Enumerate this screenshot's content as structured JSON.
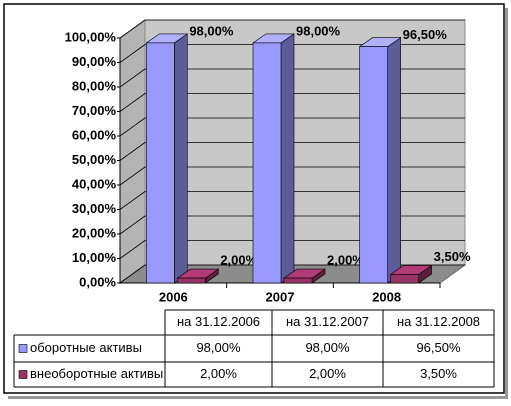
{
  "chart_data": {
    "type": "bar3d",
    "categories": [
      "2006",
      "2007",
      "2008"
    ],
    "table_headers": [
      "на 31.12.2006",
      "на 31.12.2007",
      "на 31.12.2008"
    ],
    "series": [
      {
        "name": "оборотные активы",
        "color": "#9999ff",
        "values": [
          98,
          98,
          96.5
        ],
        "value_labels": [
          "98,00%",
          "98,00%",
          "96,50%"
        ]
      },
      {
        "name": "внеоборотные активы",
        "color": "#993366",
        "values": [
          2,
          2,
          3.5
        ],
        "value_labels": [
          "2,00%",
          "2,00%",
          "3,50%"
        ]
      }
    ],
    "ylim": [
      0,
      100
    ],
    "yticks": [
      {
        "value": 0,
        "label": "0,00%"
      },
      {
        "value": 10,
        "label": "10,00%"
      },
      {
        "value": 20,
        "label": "20,00%"
      },
      {
        "value": 30,
        "label": "30,00%"
      },
      {
        "value": 40,
        "label": "40,00%"
      },
      {
        "value": 50,
        "label": "50,00%"
      },
      {
        "value": 60,
        "label": "60,00%"
      },
      {
        "value": 70,
        "label": "70,00%"
      },
      {
        "value": 80,
        "label": "80,00%"
      },
      {
        "value": 90,
        "label": "90,00%"
      },
      {
        "value": 100,
        "label": "100,00%"
      }
    ],
    "grid": true
  }
}
